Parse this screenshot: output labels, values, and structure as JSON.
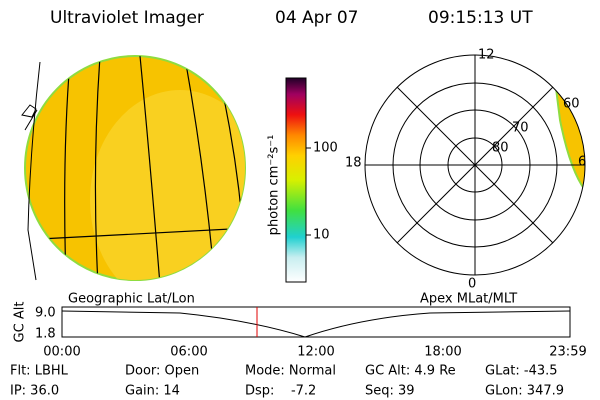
{
  "header": {
    "title": "Ultraviolet Imager",
    "date": "04 Apr 07",
    "time": "09:15:13 UT"
  },
  "colorbar": {
    "label": "photon cm⁻²s⁻¹",
    "ticks": [
      "100",
      "10"
    ]
  },
  "polar": {
    "labels": [
      "12",
      "18",
      "0",
      "6",
      "60",
      "70",
      "80"
    ]
  },
  "strip": {
    "left_title": "Geographic Lat/Lon",
    "right_title": "Apex MLat/MLT",
    "ylabel": "GC Alt",
    "yticks": [
      "9.0",
      "1.8"
    ],
    "times": [
      "00:00",
      "06:00",
      "12:00",
      "18:00",
      "23:59"
    ]
  },
  "info": {
    "rows": [
      [
        "Flt: LBHL",
        "Door: Open",
        "Mode: Normal",
        "GC Alt: 4.9 Re",
        "GLat: -43.5"
      ],
      [
        "IP: 36.0",
        "Gain: 14",
        "Dsp:    -7.2",
        "Seq: 39",
        "GLon: 347.9"
      ]
    ]
  }
}
